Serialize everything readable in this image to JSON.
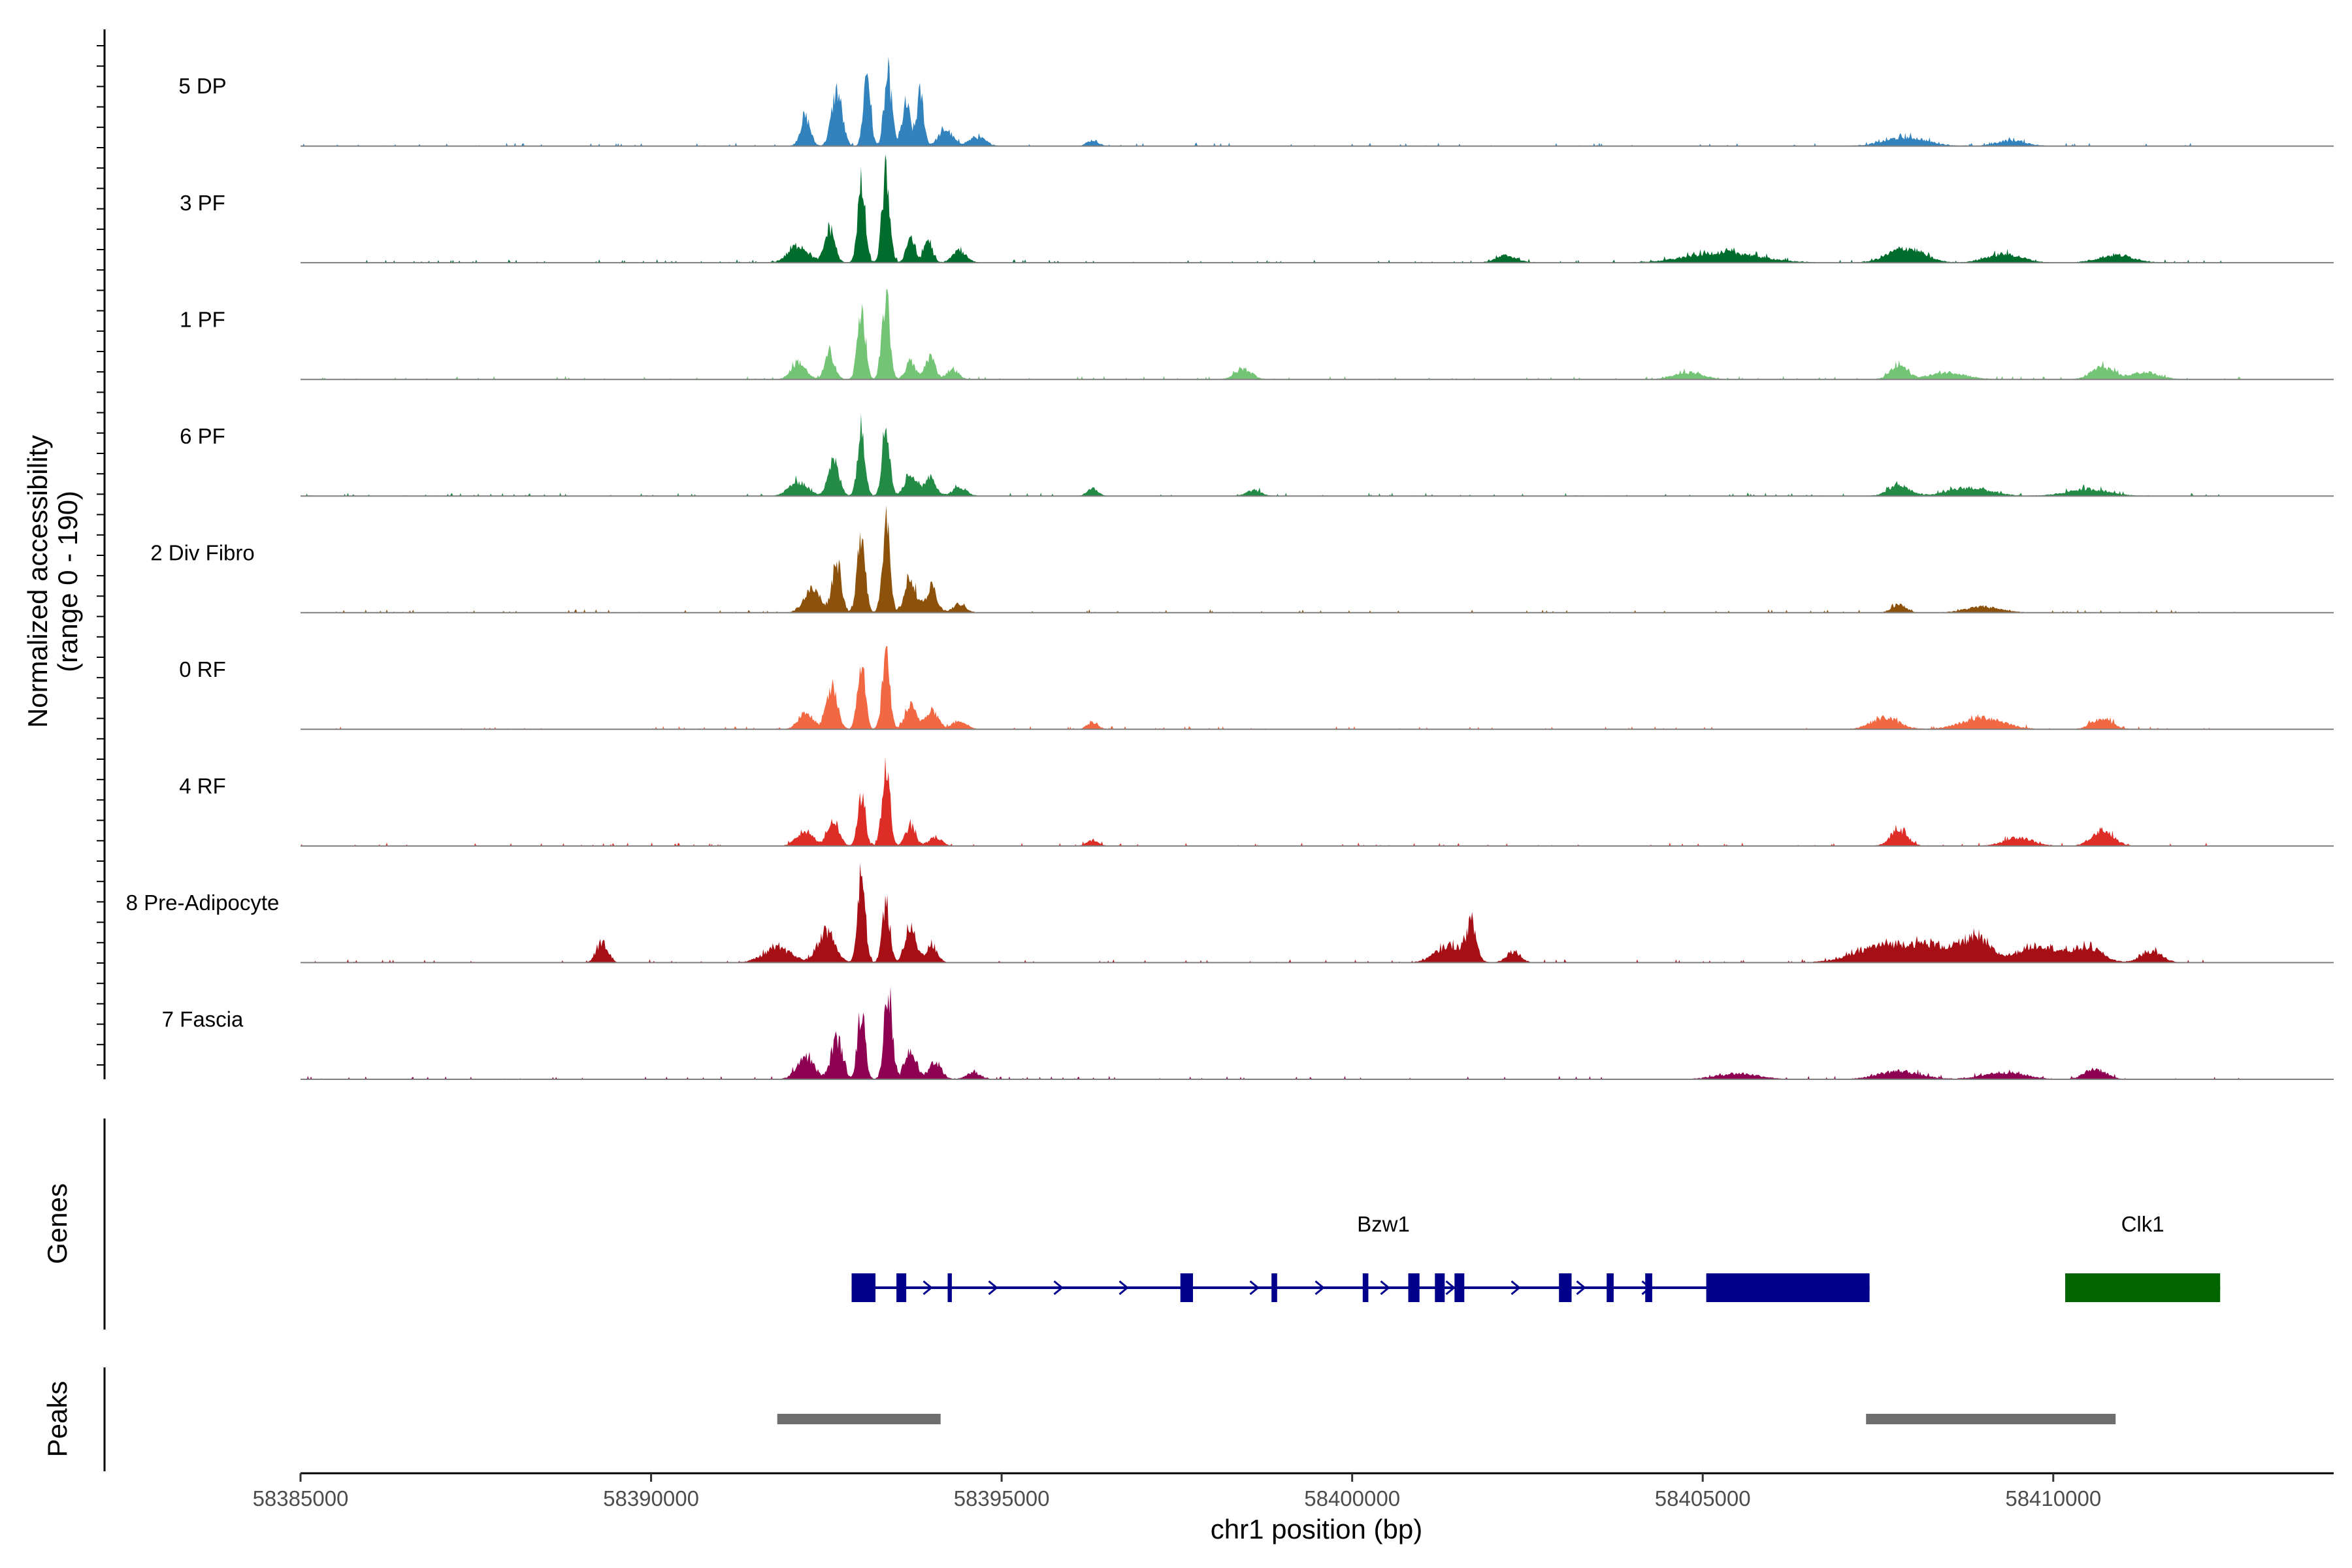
{
  "chart_data": {
    "type": "area",
    "subtype": "genome-coverage-tracks",
    "ylabel_line1": "Normalized accessibility",
    "ylabel_line2": "(range 0 - 190)",
    "y_range": [
      0,
      190
    ],
    "xlabel": "chr1 position (bp)",
    "xlim": [
      58385000,
      58414000
    ],
    "x_ticks": [
      {
        "value": 58385000,
        "label": "58385000"
      },
      {
        "value": 58390000,
        "label": "58390000"
      },
      {
        "value": 58395000,
        "label": "58395000"
      },
      {
        "value": 58400000,
        "label": "58400000"
      },
      {
        "value": 58405000,
        "label": "58405000"
      },
      {
        "value": 58410000,
        "label": "58410000"
      }
    ],
    "tracks": [
      {
        "name": "5 DP",
        "color": "#3182BD",
        "start": 58385000,
        "end": 58412700,
        "peaks": [
          [
            58392200,
            50,
            70
          ],
          [
            58392650,
            95,
            75
          ],
          [
            58393080,
            130,
            50
          ],
          [
            58393380,
            120,
            55
          ],
          [
            58393640,
            70,
            60
          ],
          [
            58393840,
            90,
            50
          ],
          [
            58394200,
            28,
            100
          ],
          [
            58394650,
            15,
            120
          ],
          [
            58396300,
            10,
            80
          ],
          [
            58407900,
            15,
            300
          ],
          [
            58409400,
            10,
            200
          ]
        ]
      },
      {
        "name": "3 PF",
        "color": "#006D2C",
        "start": 58385000,
        "end": 58412700,
        "peaks": [
          [
            58392100,
            30,
            140
          ],
          [
            58392550,
            60,
            70
          ],
          [
            58393000,
            130,
            55
          ],
          [
            58393350,
            150,
            55
          ],
          [
            58393700,
            45,
            60
          ],
          [
            58393950,
            40,
            60
          ],
          [
            58394400,
            20,
            100
          ],
          [
            58402200,
            12,
            150
          ],
          [
            58405300,
            18,
            500
          ],
          [
            58407900,
            25,
            250
          ],
          [
            58409300,
            15,
            250
          ],
          [
            58410900,
            13,
            250
          ]
        ]
      },
      {
        "name": "1 PF",
        "color": "#74C476",
        "start": 58385000,
        "end": 58412700,
        "peaks": [
          [
            58392100,
            30,
            100
          ],
          [
            58392550,
            45,
            70
          ],
          [
            58393000,
            125,
            55
          ],
          [
            58393350,
            140,
            55
          ],
          [
            58393700,
            30,
            70
          ],
          [
            58393980,
            40,
            70
          ],
          [
            58394300,
            18,
            80
          ],
          [
            58398450,
            18,
            120
          ],
          [
            58404800,
            12,
            200
          ],
          [
            58407800,
            24,
            120
          ],
          [
            58408500,
            12,
            250
          ],
          [
            58410700,
            22,
            150
          ],
          [
            58411300,
            12,
            200
          ]
        ]
      },
      {
        "name": "6 PF",
        "color": "#238B45",
        "start": 58385000,
        "end": 58412700,
        "peaks": [
          [
            58392100,
            25,
            130
          ],
          [
            58392600,
            60,
            80
          ],
          [
            58393000,
            115,
            55
          ],
          [
            58393350,
            120,
            55
          ],
          [
            58393700,
            40,
            80
          ],
          [
            58393980,
            35,
            80
          ],
          [
            58394400,
            15,
            100
          ],
          [
            58396300,
            12,
            80
          ],
          [
            58398600,
            10,
            100
          ],
          [
            58407800,
            18,
            150
          ],
          [
            58408800,
            14,
            300
          ],
          [
            58410500,
            12,
            300
          ]
        ]
      },
      {
        "name": "2 Div Fibro",
        "color": "#8C510A",
        "start": 58385000,
        "end": 58412700,
        "peaks": [
          [
            58392300,
            40,
            120
          ],
          [
            58392650,
            90,
            65
          ],
          [
            58393000,
            145,
            55
          ],
          [
            58393350,
            150,
            55
          ],
          [
            58393700,
            60,
            80
          ],
          [
            58394000,
            40,
            80
          ],
          [
            58394400,
            15,
            90
          ],
          [
            58407800,
            15,
            100
          ],
          [
            58409000,
            10,
            250
          ]
        ]
      },
      {
        "name": "0 RF",
        "color": "#F16843",
        "start": 58385000,
        "end": 58412700,
        "peaks": [
          [
            58392200,
            30,
            100
          ],
          [
            58392580,
            70,
            80
          ],
          [
            58393000,
            115,
            55
          ],
          [
            58393350,
            120,
            55
          ],
          [
            58393700,
            40,
            80
          ],
          [
            58394000,
            35,
            90
          ],
          [
            58394400,
            15,
            100
          ],
          [
            58396300,
            12,
            80
          ],
          [
            58407600,
            20,
            200
          ],
          [
            58409000,
            20,
            300
          ],
          [
            58410700,
            18,
            150
          ]
        ]
      },
      {
        "name": "4 RF",
        "color": "#DE2D26",
        "start": 58385000,
        "end": 58412700,
        "peaks": [
          [
            58392200,
            25,
            120
          ],
          [
            58392600,
            45,
            80
          ],
          [
            58393000,
            85,
            55
          ],
          [
            58393350,
            140,
            55
          ],
          [
            58393700,
            35,
            70
          ],
          [
            58394050,
            15,
            90
          ],
          [
            58396300,
            10,
            80
          ],
          [
            58407800,
            28,
            120
          ],
          [
            58409500,
            15,
            200
          ],
          [
            58410700,
            28,
            150
          ]
        ]
      },
      {
        "name": "8 Pre-Adipocyte",
        "color": "#A50F15",
        "start": 58385000,
        "end": 58412700,
        "peaks": [
          [
            58389300,
            35,
            80
          ],
          [
            58391800,
            25,
            200
          ],
          [
            58392500,
            55,
            120
          ],
          [
            58393000,
            145,
            55
          ],
          [
            58393350,
            100,
            55
          ],
          [
            58393700,
            60,
            80
          ],
          [
            58394000,
            30,
            80
          ],
          [
            58401700,
            60,
            70
          ],
          [
            58401400,
            30,
            200
          ],
          [
            58402300,
            20,
            100
          ],
          [
            58407600,
            30,
            400
          ],
          [
            58408300,
            25,
            300
          ],
          [
            58408900,
            40,
            200
          ],
          [
            58409800,
            30,
            300
          ],
          [
            58410500,
            25,
            200
          ],
          [
            58411400,
            20,
            150
          ]
        ]
      },
      {
        "name": "7 Fascia",
        "color": "#8E0152",
        "start": 58385000,
        "end": 58412700,
        "peaks": [
          [
            58392200,
            40,
            120
          ],
          [
            58392650,
            70,
            80
          ],
          [
            58393000,
            115,
            55
          ],
          [
            58393380,
            160,
            55
          ],
          [
            58393700,
            50,
            80
          ],
          [
            58394050,
            30,
            90
          ],
          [
            58394600,
            12,
            100
          ],
          [
            58405500,
            10,
            300
          ],
          [
            58407800,
            14,
            300
          ],
          [
            58409300,
            12,
            300
          ],
          [
            58410600,
            18,
            150
          ]
        ]
      }
    ],
    "genes_label": "Genes",
    "peaks_label": "Peaks",
    "genes": [
      {
        "name": "Bzw1",
        "color": "#00008B",
        "start": 58392860,
        "end": 58407380,
        "exons": [
          [
            58392860,
            58393200
          ],
          [
            58393500,
            58393640
          ],
          [
            58394230,
            58394290
          ],
          [
            58397550,
            58397730
          ],
          [
            58398850,
            58398930
          ],
          [
            58400150,
            58400230
          ],
          [
            58400800,
            58400960
          ],
          [
            58401180,
            58401320
          ],
          [
            58401460,
            58401600
          ],
          [
            58402950,
            58403130
          ],
          [
            58403630,
            58403730
          ],
          [
            58404180,
            58404280
          ],
          [
            58405050,
            58407380
          ]
        ]
      },
      {
        "name": "Clk1",
        "color": "#006400",
        "start": 58410170,
        "end": 58412380,
        "exons": [
          [
            58410170,
            58412380
          ]
        ]
      }
    ],
    "peaks": [
      {
        "start": 58391800,
        "end": 58394130,
        "color": "#6E6E6E"
      },
      {
        "start": 58407330,
        "end": 58410890,
        "color": "#6E6E6E"
      }
    ]
  }
}
